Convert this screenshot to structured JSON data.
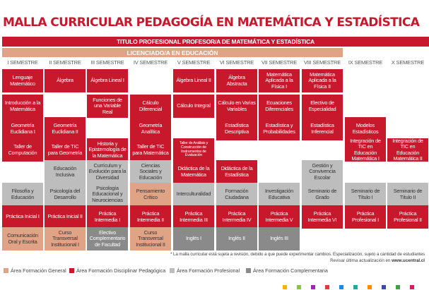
{
  "title": "MALLA CURRICULAR PEDAGOGÍA EN MATEMÁTICA Y ESTADÍSTICA",
  "titulo_profesional": "TITULO PROFESIONAL PROFESOR/A DE MATEMÁTICA Y ESTADÍSTICA",
  "licenciado": "LICENCIADO/A EN EDUCACIÓN",
  "semesters": [
    "I SEMESTRE",
    "II SEMESTRE",
    "III SEMESTRE",
    "IV SEMESTRE",
    "V SEMESTRE",
    "VI SEMESTRE",
    "VII SEMESTRE",
    "VIII SEMESTRE",
    "IX SEMESTRE",
    "X SEMESTRE"
  ],
  "rows": [
    [
      "Lenguaje Matemático",
      "Álgebra",
      "Álgebra Lineal I",
      "",
      "Álgebra Lineal II",
      "Álgebra Abstracta",
      "Matemática Aplicada a la Física I",
      "Matemática Aplicada a la Física II",
      "",
      ""
    ],
    [
      "Introducción a la Matemática",
      "",
      "Funciones de una Variable Real",
      "Cálculo Diferencial",
      "Cálculo Integral",
      "Cálculo en Varias Variables",
      "Ecuaciones Diferenciales",
      "Electivo de Especialidad",
      "",
      ""
    ],
    [
      "Geometría Euclidiana I",
      "Geometría Euclidiana II",
      "",
      "Geometría Analítica",
      "",
      "Estadística Descriptiva",
      "Estadística y Probabilidades",
      "Estadística Inferencial",
      "Modelos Estadísticos",
      ""
    ],
    [
      "Taller de Computación",
      "Taller de TIC para Geometría",
      "Historia y Epistemología de la Matemática",
      "Taller de TIC para Matemática",
      "Taller de Análisis y Construcción de Instrumentos de Evaluación",
      "",
      "",
      "",
      "Integración de TIC en Educación Matemática I",
      "Integración de TIC en Educación Matemática II"
    ],
    [
      "",
      "Educación Inclusiva",
      "Currículum y Evolución para la Diversidad",
      "Ciencias Sociales y Educación",
      "Didáctica de la Matemática",
      "Didáctica de la Estadística",
      "",
      "Gestión y Convivencia Escolar",
      "",
      ""
    ],
    [
      "Filosofía y Educación",
      "Psicología del Desarrollo",
      "Psicología Educacional y Neurociencias",
      "Pensamiento Crítico",
      "Interculturalidad",
      "Formación Ciudadana",
      "Investigación Educativa",
      "Seminario de Grado",
      "Seminario de Título I",
      "Seminario de Título II"
    ],
    [
      "Práctica Inicial I",
      "Práctica Inicial II",
      "Práctica Intermedia I",
      "Práctica Intermedia II",
      "Práctica Intermedia III",
      "Práctica Intermedia IV",
      "Práctica Intermedia V",
      "Práctica Intermedia VI",
      "Práctica Profesional I",
      "Práctica Profesional II"
    ],
    [
      "Comunicación Oral y Escrita",
      "Curso Transversal Institucional I",
      "Electivo Complementario de Facultad",
      "Curso Transversal Institucional II",
      "Inglés I",
      "Inglés II",
      "Inglés III",
      "",
      "",
      ""
    ]
  ],
  "row_types": [
    [
      "r",
      "r",
      "r",
      "",
      "r",
      "r",
      "r",
      "r",
      "",
      ""
    ],
    [
      "r",
      "",
      "r",
      "r",
      "r",
      "r",
      "r",
      "r",
      "",
      ""
    ],
    [
      "r",
      "r",
      "",
      "r",
      "",
      "r",
      "r",
      "r",
      "r",
      ""
    ],
    [
      "r",
      "r",
      "r",
      "r",
      "r",
      "",
      "",
      "",
      "r",
      "r"
    ],
    [
      "",
      "g",
      "g",
      "g",
      "r",
      "r",
      "",
      "g",
      "",
      ""
    ],
    [
      "g",
      "g",
      "g",
      "o",
      "g",
      "g",
      "g",
      "g",
      "g",
      "g"
    ],
    [
      "r",
      "r",
      "r",
      "r",
      "r",
      "r",
      "r",
      "r",
      "r",
      "r"
    ],
    [
      "o",
      "o",
      "d",
      "o",
      "d",
      "d",
      "d",
      "",
      "",
      ""
    ]
  ],
  "colors": {
    "red": "#c8182b",
    "orange": "#e0a386",
    "gray": "#bdbdbd",
    "dark_gray": "#8a8a8a"
  },
  "note1": "* La malla curricular está sujeta a revisión, debido a que puede experimentar cambios. Especialización, sujeto a cantidad de estudiantes",
  "note2_prefix": "Revisar última actualización en",
  "note2_url": "www.ucentral.cl",
  "legend": [
    {
      "label": "Área Formación General",
      "color": "#e0a386"
    },
    {
      "label": "Área Formación Disciplinar Pedagógica",
      "color": "#c8182b"
    },
    {
      "label": "Área Formación Profesional",
      "color": "#bdbdbd"
    },
    {
      "label": "Área Formación Complementaria",
      "color": "#8a8a8a"
    }
  ],
  "footer_squares": [
    "#f4b400",
    "#8bc34a",
    "#9c27b0",
    "#e53935",
    "#1e88e5",
    "#26a69a",
    "#fb8c00",
    "#3949ab",
    "#43a047",
    "#d81b60"
  ]
}
